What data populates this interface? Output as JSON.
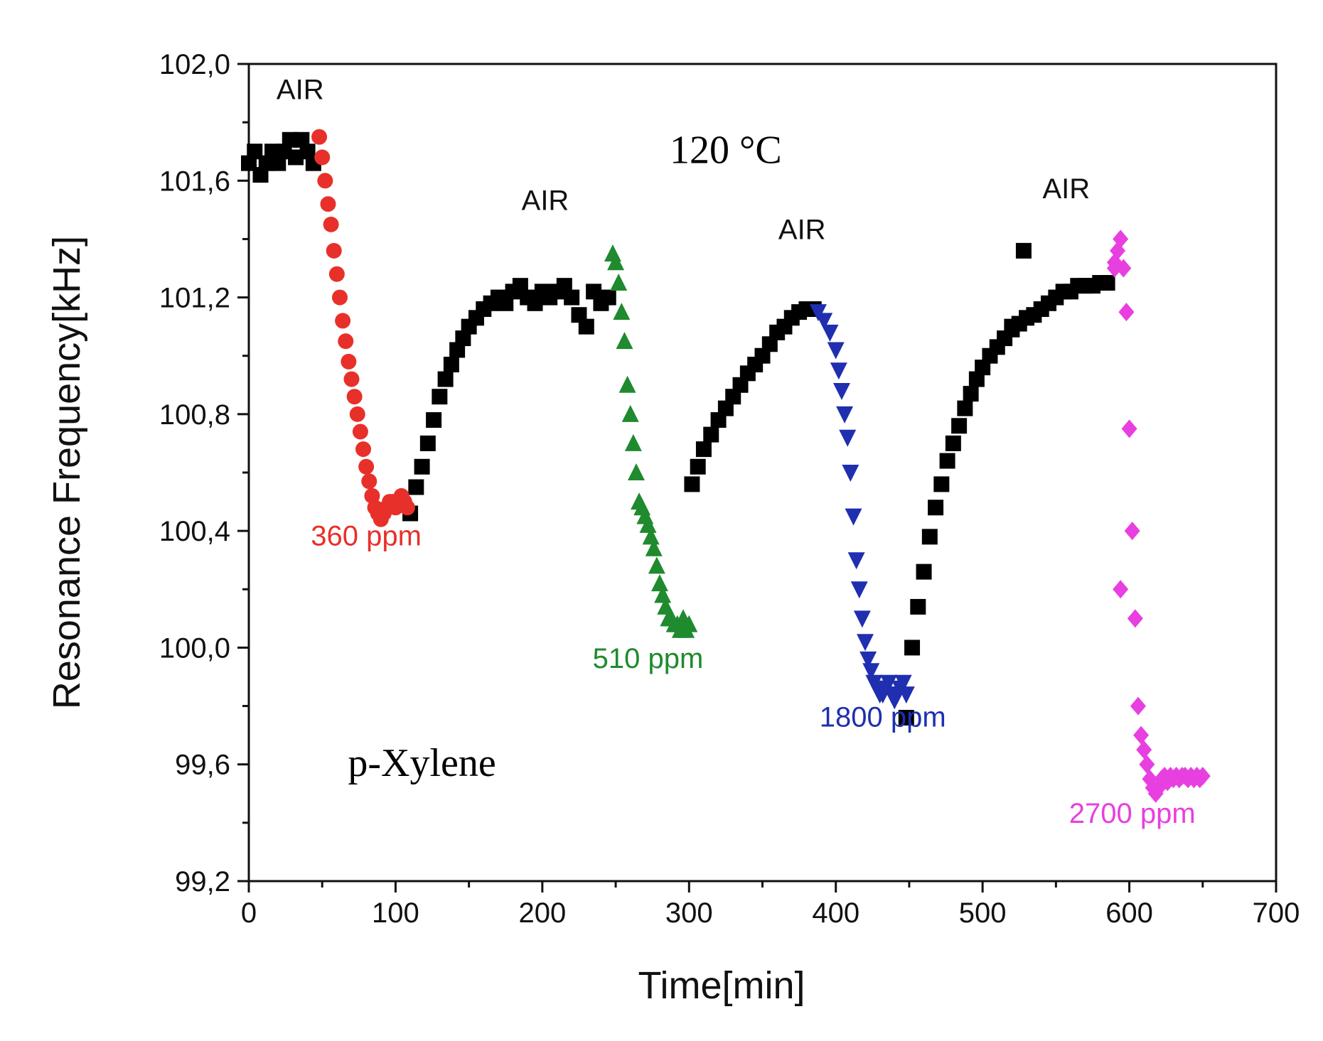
{
  "chart_data": {
    "type": "scatter",
    "xlabel": "Time[min]",
    "ylabel": "Resonance  Frequency[kHz]",
    "xlim": [
      0,
      700
    ],
    "ylim": [
      99.2,
      102.0
    ],
    "xticks": [
      "0",
      "100",
      "200",
      "300",
      "400",
      "500",
      "600",
      "700"
    ],
    "yticks": [
      "99,2",
      "99,6",
      "100,0",
      "100,4",
      "100,8",
      "101,2",
      "101,6",
      "102,0"
    ],
    "grid": false,
    "legend": "none",
    "annotations": [
      {
        "text": "AIR",
        "x": 35,
        "y": 101.88,
        "style": "sans",
        "color": "#111111"
      },
      {
        "text": "AIR",
        "x": 202,
        "y": 101.5,
        "style": "sans",
        "color": "#111111"
      },
      {
        "text": "AIR",
        "x": 377,
        "y": 101.4,
        "style": "sans",
        "color": "#111111"
      },
      {
        "text": "AIR",
        "x": 557,
        "y": 101.54,
        "style": "sans",
        "color": "#111111"
      },
      {
        "text": "120 °C",
        "x": 325,
        "y": 101.66,
        "style": "serif",
        "color": "#000000"
      },
      {
        "text": "p-Xylene",
        "x": 118,
        "y": 99.56,
        "style": "serif",
        "color": "#000000"
      },
      {
        "text": "360 ppm",
        "x": 80,
        "y": 100.35,
        "style": "sans",
        "color": "#e8302a"
      },
      {
        "text": "510 ppm",
        "x": 272,
        "y": 99.93,
        "style": "sans",
        "color": "#1f8a2e"
      },
      {
        "text": "1800 ppm",
        "x": 432,
        "y": 99.73,
        "style": "sans",
        "color": "#1f2fb0"
      },
      {
        "text": "2700 ppm",
        "x": 602,
        "y": 99.4,
        "style": "sans",
        "color": "#e83fe0"
      }
    ],
    "series": [
      {
        "color": "#000000",
        "marker": "square",
        "x": [
          0,
          4,
          8,
          12,
          16,
          20,
          24,
          28,
          32,
          36,
          40,
          44,
          110,
          114,
          118,
          122,
          126,
          130,
          134,
          138,
          142,
          146,
          150,
          155,
          160,
          165,
          170,
          175,
          180,
          185,
          190,
          195,
          200,
          205,
          210,
          215,
          220,
          225,
          230,
          235,
          240,
          245,
          302,
          306,
          310,
          315,
          320,
          325,
          330,
          335,
          340,
          345,
          350,
          355,
          360,
          365,
          370,
          375,
          380,
          385,
          448,
          452,
          456,
          460,
          464,
          468,
          472,
          476,
          480,
          484,
          488,
          492,
          496,
          500,
          505,
          510,
          515,
          520,
          525,
          530,
          535,
          540,
          545,
          550,
          555,
          560,
          565,
          570,
          575,
          580,
          585,
          528,
          520
        ],
        "y": [
          101.66,
          101.7,
          101.62,
          101.66,
          101.7,
          101.66,
          101.7,
          101.74,
          101.68,
          101.74,
          101.7,
          101.66,
          100.46,
          100.55,
          100.62,
          100.7,
          100.78,
          100.86,
          100.92,
          100.97,
          101.02,
          101.06,
          101.1,
          101.13,
          101.16,
          101.18,
          101.2,
          101.18,
          101.22,
          101.24,
          101.2,
          101.18,
          101.22,
          101.2,
          101.22,
          101.24,
          101.2,
          101.14,
          101.1,
          101.22,
          101.18,
          101.2,
          100.56,
          100.62,
          100.68,
          100.73,
          100.78,
          100.82,
          100.86,
          100.9,
          100.94,
          100.97,
          101.0,
          101.04,
          101.08,
          101.1,
          101.13,
          101.15,
          101.16,
          101.16,
          99.76,
          100.0,
          100.14,
          100.26,
          100.38,
          100.48,
          100.56,
          100.64,
          100.7,
          100.76,
          100.82,
          100.87,
          100.92,
          100.96,
          101.0,
          101.03,
          101.06,
          101.09,
          101.11,
          101.13,
          101.14,
          101.16,
          101.18,
          101.2,
          101.22,
          101.22,
          101.24,
          101.24,
          101.24,
          101.25,
          101.25,
          101.36,
          101.1
        ]
      },
      {
        "color": "#e8302a",
        "marker": "circle",
        "x": [
          48,
          50,
          52,
          54,
          56,
          58,
          60,
          62,
          64,
          66,
          68,
          70,
          72,
          74,
          76,
          78,
          80,
          82,
          84,
          86,
          88,
          90,
          92,
          94,
          96,
          98,
          100,
          102,
          104,
          106,
          108
        ],
        "y": [
          101.75,
          101.68,
          101.6,
          101.52,
          101.45,
          101.36,
          101.28,
          101.2,
          101.12,
          101.05,
          100.98,
          100.92,
          100.86,
          100.8,
          100.74,
          100.68,
          100.62,
          100.57,
          100.52,
          100.48,
          100.46,
          100.44,
          100.46,
          100.48,
          100.5,
          100.5,
          100.48,
          100.5,
          100.52,
          100.5,
          100.48
        ]
      },
      {
        "color": "#1f8a2e",
        "marker": "triangle-up",
        "x": [
          248,
          250,
          252,
          254,
          256,
          258,
          260,
          262,
          264,
          266,
          268,
          270,
          272,
          274,
          276,
          278,
          280,
          282,
          284,
          286,
          288,
          290,
          292,
          294,
          296,
          298,
          300
        ],
        "y": [
          101.35,
          101.32,
          101.25,
          101.15,
          101.05,
          100.9,
          100.8,
          100.7,
          100.6,
          100.5,
          100.48,
          100.45,
          100.42,
          100.38,
          100.34,
          100.28,
          100.22,
          100.18,
          100.14,
          100.1,
          100.1,
          100.08,
          100.08,
          100.06,
          100.1,
          100.06,
          100.08
        ]
      },
      {
        "color": "#1f2fb0",
        "marker": "triangle-down",
        "x": [
          388,
          392,
          396,
          400,
          402,
          404,
          406,
          408,
          410,
          412,
          414,
          416,
          418,
          420,
          422,
          424,
          426,
          428,
          430,
          432,
          434,
          436,
          438,
          440,
          442,
          444,
          446,
          448
        ],
        "y": [
          101.15,
          101.12,
          101.08,
          101.02,
          100.95,
          100.88,
          100.8,
          100.72,
          100.6,
          100.45,
          100.3,
          100.2,
          100.1,
          100.02,
          99.96,
          99.92,
          99.88,
          99.86,
          99.84,
          99.84,
          99.86,
          99.88,
          99.84,
          99.82,
          99.84,
          99.86,
          99.88,
          99.84
        ]
      },
      {
        "color": "#e83fe0",
        "marker": "diamond",
        "x": [
          590,
          592,
          594,
          596,
          598,
          600,
          602,
          604,
          606,
          608,
          610,
          612,
          614,
          616,
          618,
          620,
          622,
          624,
          626,
          628,
          630,
          632,
          634,
          636,
          638,
          640,
          642,
          644,
          646,
          648,
          650,
          594,
          590
        ],
        "y": [
          101.3,
          101.36,
          101.4,
          101.3,
          101.15,
          100.75,
          100.4,
          100.1,
          99.8,
          99.7,
          99.65,
          99.6,
          99.55,
          99.52,
          99.5,
          99.52,
          99.55,
          99.56,
          99.54,
          99.56,
          99.55,
          99.56,
          99.55,
          99.56,
          99.56,
          99.55,
          99.56,
          99.55,
          99.56,
          99.55,
          99.56,
          100.2,
          101.32
        ]
      }
    ]
  }
}
